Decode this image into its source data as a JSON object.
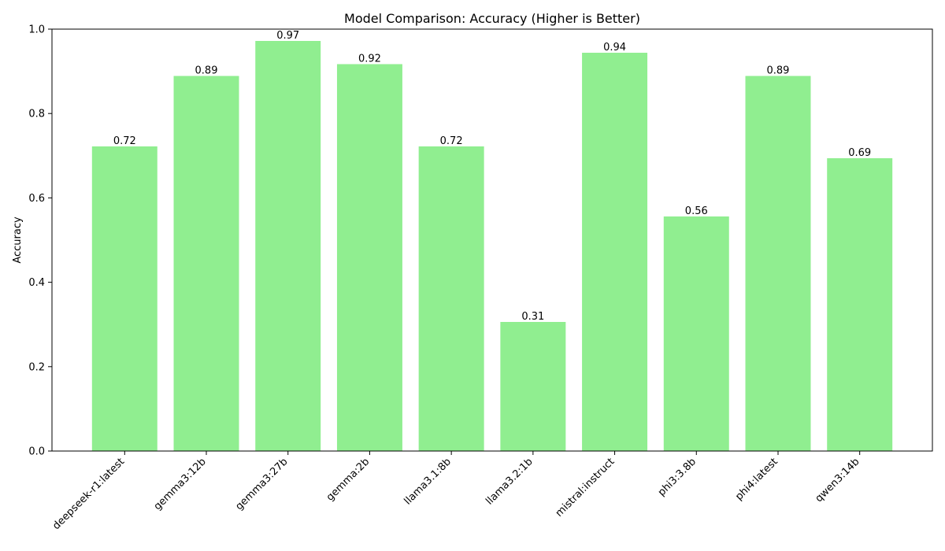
{
  "chart_data": {
    "type": "bar",
    "title": "Model Comparison: Accuracy (Higher is Better)",
    "xlabel": "",
    "ylabel": "Accuracy",
    "ylim": [
      0,
      1.0
    ],
    "yticks": [
      "0.0",
      "0.2",
      "0.4",
      "0.6",
      "0.8",
      "1.0"
    ],
    "categories": [
      "deepseek-r1:latest",
      "gemma3:12b",
      "gemma3:27b",
      "gemma:2b",
      "llama3.1:8b",
      "llama3.2:1b",
      "mistral:instruct",
      "phi3:3.8b",
      "phi4:latest",
      "qwen3:14b"
    ],
    "values": [
      0.722,
      0.889,
      0.972,
      0.917,
      0.722,
      0.306,
      0.944,
      0.556,
      0.889,
      0.694
    ],
    "value_labels": [
      "0.72",
      "0.89",
      "0.97",
      "0.92",
      "0.72",
      "0.31",
      "0.94",
      "0.56",
      "0.89",
      "0.69"
    ],
    "bar_color": "#90ee90",
    "grid": false,
    "legend": "none"
  }
}
